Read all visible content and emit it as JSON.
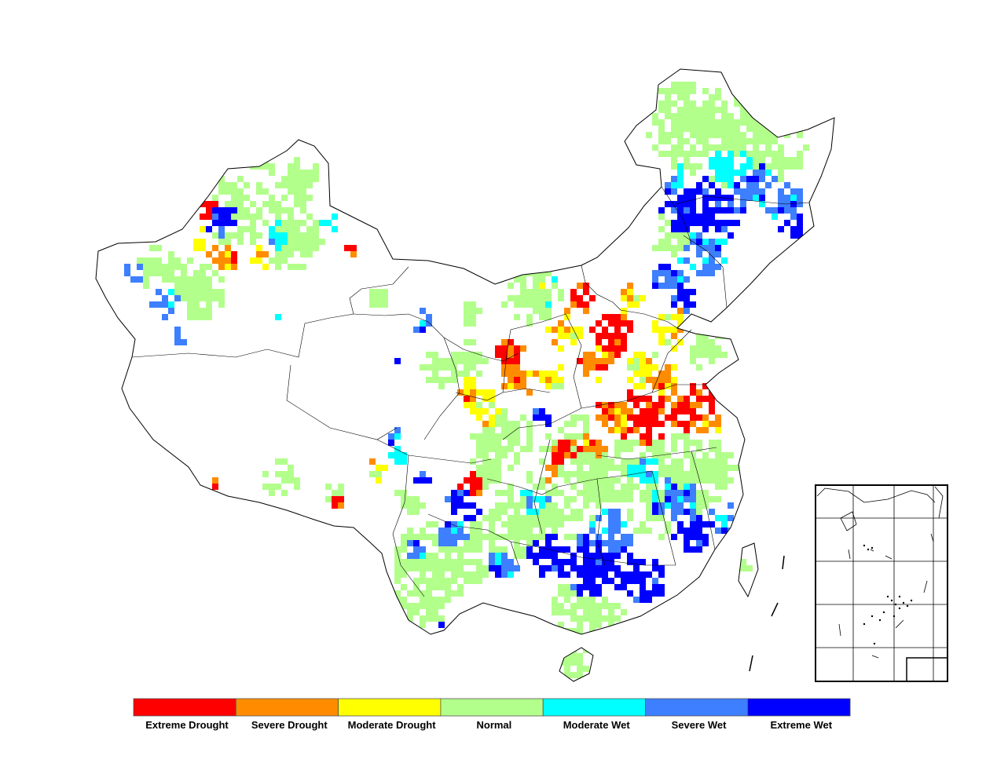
{
  "map": {
    "legend": {
      "classes": [
        {
          "label": "Extreme Drought",
          "color": "#ff0000"
        },
        {
          "label": "Severe Drought",
          "color": "#ff8c00"
        },
        {
          "label": "Moderate Drought",
          "color": "#ffff00"
        },
        {
          "label": "Normal",
          "color": "#b3ff8c"
        },
        {
          "label": "Moderate Wet",
          "color": "#00ffff"
        },
        {
          "label": "Severe Wet",
          "color": "#3d7fff"
        },
        {
          "label": "Extreme Wet",
          "color": "#0000ff"
        }
      ]
    }
  }
}
